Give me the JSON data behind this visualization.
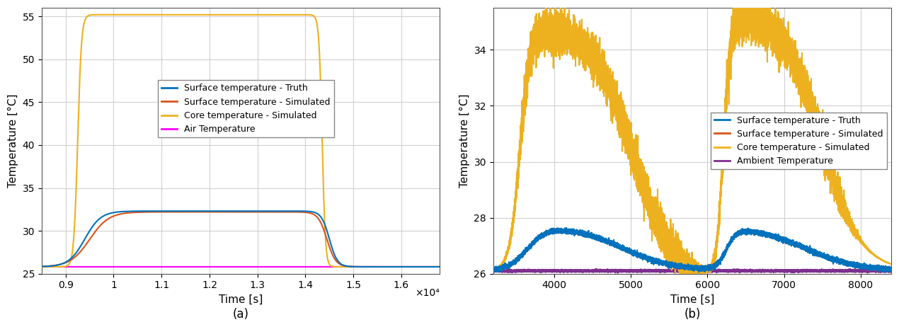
{
  "plot_a": {
    "xlim": [
      8500,
      16800
    ],
    "ylim": [
      25,
      56
    ],
    "xticks": [
      9000,
      10000,
      11000,
      12000,
      13000,
      14000,
      15000,
      16000
    ],
    "xtick_labels": [
      "0.9",
      "1",
      "1.1",
      "1.2",
      "1.3",
      "1.4",
      "1.5",
      "1.6"
    ],
    "yticks": [
      25,
      30,
      35,
      40,
      45,
      50,
      55
    ],
    "xlabel": "Time [s]",
    "ylabel": "Temperature [°C]",
    "xscale_label": "×10⁴",
    "legend_labels": [
      "Surface temperature - Truth",
      "Surface temperature - Simulated",
      "Core temperature - Simulated",
      "Air Temperature"
    ],
    "subplot_label": "(a)",
    "surface_truth_color": "#0072BD",
    "surface_sim_color": "#D95319",
    "core_sim_color": "#EDB120",
    "air_temp_color": "#FF00FF",
    "grid_color": "#d0d0d0",
    "air_temp_val": 25.8,
    "surf_base": 25.8,
    "surf_peak": 32.3,
    "core_peak": 55.2,
    "t_start": 8700,
    "t_surf_rise": 9300,
    "t_surf_flat_start": 9900,
    "t_surf_flat_end": 14300,
    "t_surf_fall_end": 15000,
    "t_core_rise": 9200,
    "t_core_flat_start": 9700,
    "t_core_flat_end": 14200,
    "t_core_fall_end": 15200
  },
  "plot_b": {
    "xlim": [
      3200,
      8400
    ],
    "ylim": [
      26.0,
      35.5
    ],
    "xticks": [
      4000,
      5000,
      6000,
      7000,
      8000
    ],
    "yticks": [
      26,
      28,
      30,
      32,
      34
    ],
    "xlabel": "Time [s]",
    "ylabel": "Temperature [°C]",
    "legend_labels": [
      "Surface temperature - Truth",
      "Surface temperature - Simulated",
      "Core temperature - Simulated",
      "Ambient Temperature"
    ],
    "subplot_label": "(b)",
    "surface_truth_color": "#0072BD",
    "surface_sim_color": "#D95319",
    "core_sim_color": "#EDB120",
    "ambient_temp_color": "#7E2F8E",
    "grid_color": "#d0d0d0",
    "ambient_val": 26.1
  },
  "background_color": "#ffffff",
  "linewidth": 1.5
}
